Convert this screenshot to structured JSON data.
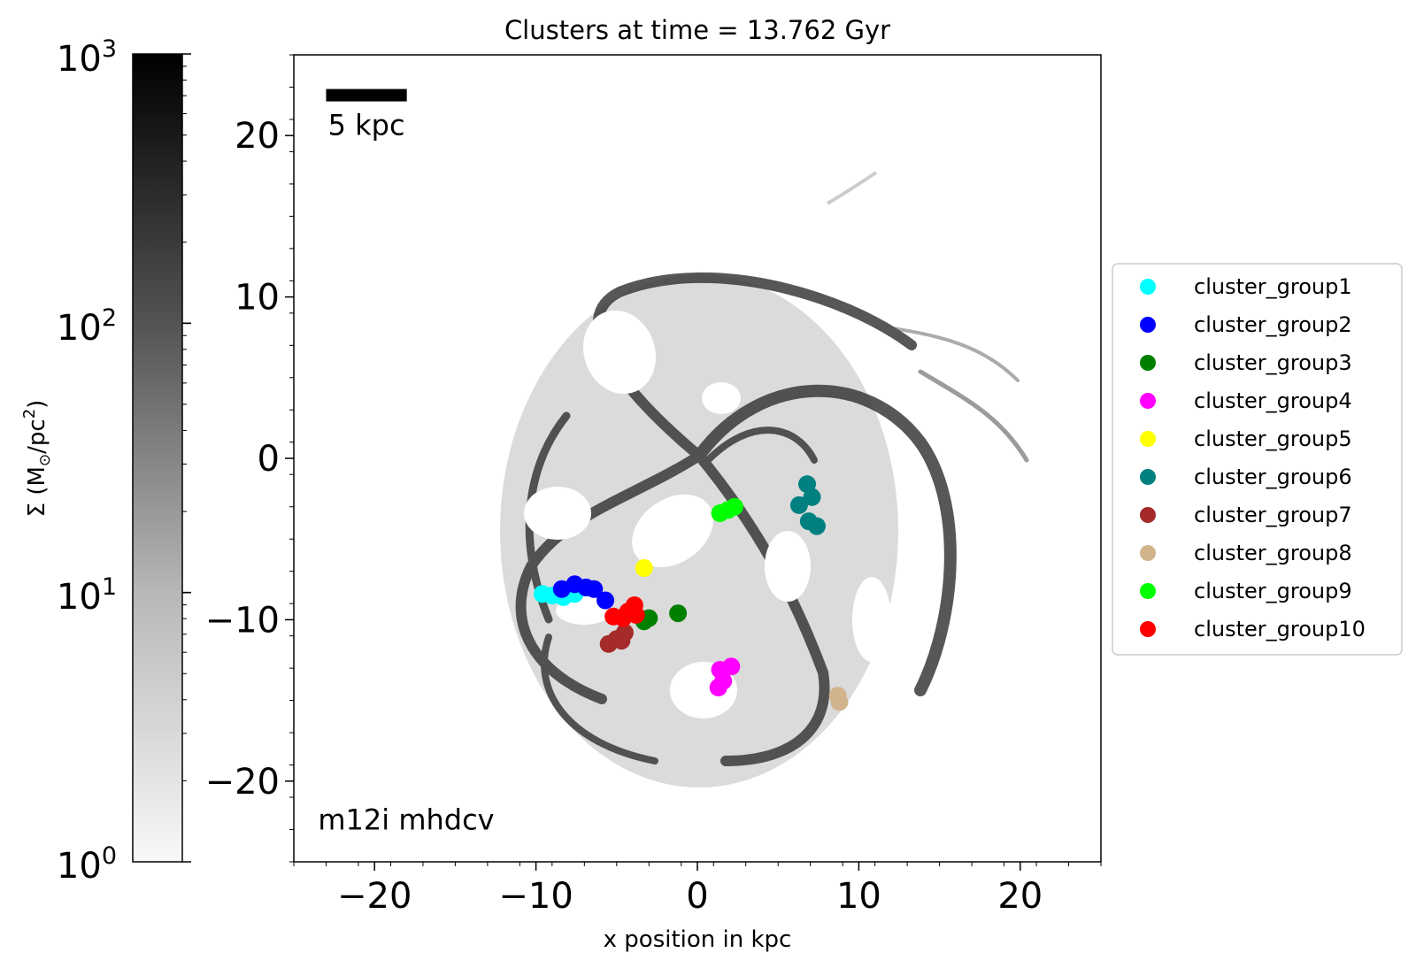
{
  "chart_data": {
    "type": "scatter",
    "title": "Clusters at time = 13.762 Gyr",
    "xlabel": "x position in kpc",
    "ylabel": "",
    "xlim": [
      -25,
      25
    ],
    "ylim": [
      -25,
      25
    ],
    "xticks": [
      -20,
      -10,
      0,
      10,
      20
    ],
    "xtick_labels": [
      "−20",
      "−10",
      "0",
      "10",
      "20"
    ],
    "yticks": [
      20,
      10,
      0,
      -10,
      -20
    ],
    "ytick_labels": [
      "20",
      "10",
      "0",
      "−10",
      "−20"
    ],
    "scale_bar": {
      "label": "5 kpc",
      "length_kpc": 5,
      "x_start": -23,
      "y": 22.5
    },
    "annotation": {
      "text": "m12i mhdcv",
      "x": -23.5,
      "y": -23
    },
    "legend_position": "right outside",
    "colorbar": {
      "label": "Σ (M⊙/pc²)",
      "label_parts": {
        "sigma": "Σ (M",
        "sun": "⊙",
        "unit": "/pc",
        "exp": "2",
        "close": ")"
      },
      "scale": "log",
      "range": [
        1,
        1000
      ],
      "colormap": "grey, white to black",
      "ticks": [
        {
          "value": 1000,
          "base": "10",
          "exp": "3"
        },
        {
          "value": 100,
          "base": "10",
          "exp": "2"
        },
        {
          "value": 10,
          "base": "10",
          "exp": "1"
        },
        {
          "value": 1,
          "base": "10",
          "exp": "0"
        }
      ]
    },
    "series": [
      {
        "name": "cluster_group1",
        "color": "#00ffff",
        "points": [
          [
            -9.6,
            -8.4
          ],
          [
            -9.0,
            -8.5
          ],
          [
            -8.3,
            -8.6
          ],
          [
            -7.6,
            -8.4
          ]
        ]
      },
      {
        "name": "cluster_group2",
        "color": "#0000ff",
        "points": [
          [
            -8.4,
            -8.1
          ],
          [
            -7.6,
            -7.8
          ],
          [
            -6.9,
            -8.0
          ],
          [
            -6.4,
            -8.1
          ],
          [
            -5.7,
            -8.8
          ]
        ]
      },
      {
        "name": "cluster_group3",
        "color": "#008000",
        "points": [
          [
            -3.3,
            -10.1
          ],
          [
            -3.0,
            -9.9
          ],
          [
            -1.2,
            -9.6
          ]
        ]
      },
      {
        "name": "cluster_group4",
        "color": "#ff00ff",
        "points": [
          [
            1.4,
            -13.1
          ],
          [
            2.1,
            -12.9
          ],
          [
            1.6,
            -13.8
          ],
          [
            1.3,
            -14.2
          ]
        ]
      },
      {
        "name": "cluster_group5",
        "color": "#ffff00",
        "points": [
          [
            -3.3,
            -6.8
          ]
        ]
      },
      {
        "name": "cluster_group6",
        "color": "#008080",
        "points": [
          [
            6.8,
            -1.6
          ],
          [
            7.1,
            -2.4
          ],
          [
            6.3,
            -2.9
          ],
          [
            6.9,
            -3.9
          ],
          [
            7.4,
            -4.2
          ]
        ]
      },
      {
        "name": "cluster_group7",
        "color": "#a52a2a",
        "points": [
          [
            -5.5,
            -11.5
          ],
          [
            -5.0,
            -11.2
          ],
          [
            -4.5,
            -10.8
          ],
          [
            -4.7,
            -11.3
          ]
        ]
      },
      {
        "name": "cluster_group8",
        "color": "#d2b48c",
        "points": [
          [
            8.7,
            -14.7
          ],
          [
            8.8,
            -15.1
          ]
        ]
      },
      {
        "name": "cluster_group9",
        "color": "#00ff00",
        "points": [
          [
            1.4,
            -3.4
          ],
          [
            1.9,
            -3.2
          ],
          [
            2.3,
            -3.0
          ]
        ]
      },
      {
        "name": "cluster_group10",
        "color": "#ff0000",
        "points": [
          [
            -5.2,
            -9.8
          ],
          [
            -4.3,
            -9.5
          ],
          [
            -3.9,
            -9.1
          ],
          [
            -4.6,
            -9.9
          ],
          [
            -3.8,
            -9.7
          ]
        ]
      }
    ]
  }
}
